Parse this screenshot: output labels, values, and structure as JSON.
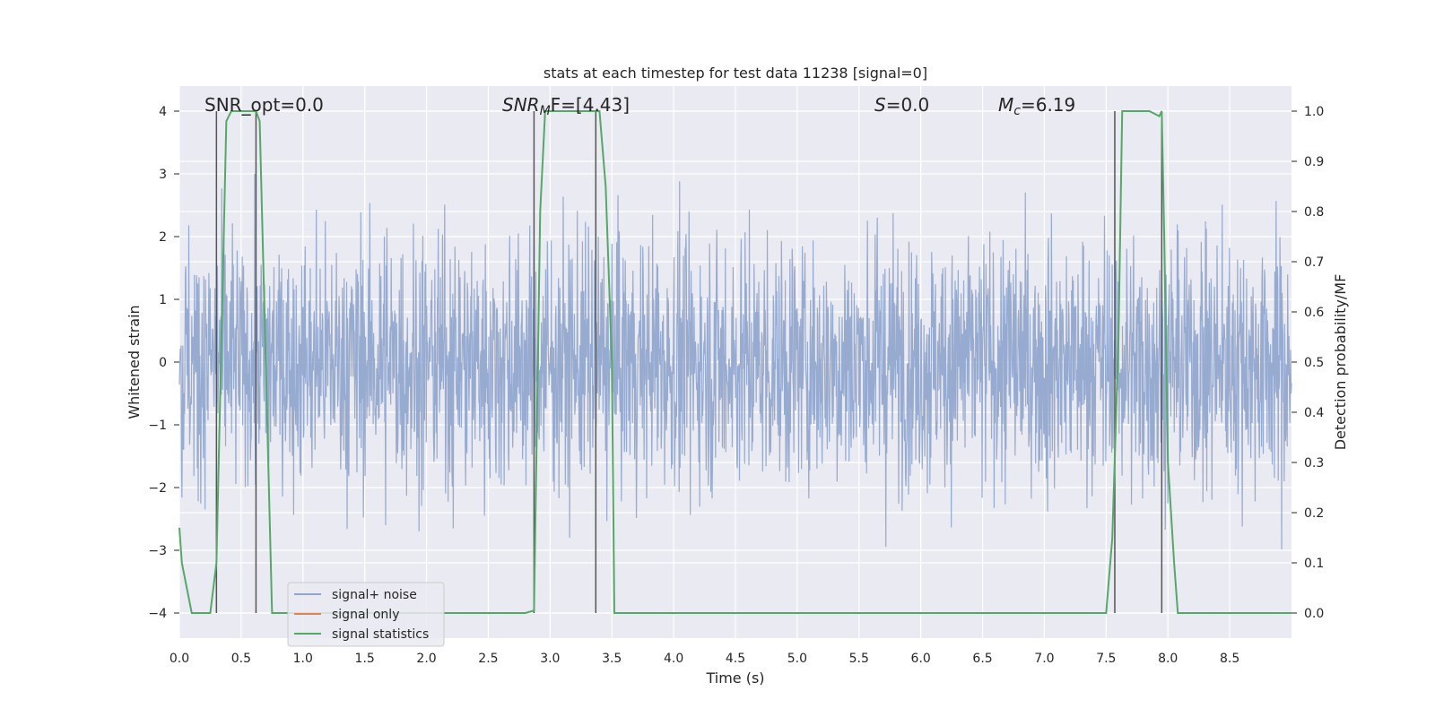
{
  "chart_data": {
    "type": "line",
    "title": "stats at each timestep for test data 11238 [signal=0]",
    "xlabel": "Time (s)",
    "ylabel": "Whitened strain",
    "y2label": "Detection probability/MF",
    "xlim": [
      0.0,
      9.0
    ],
    "ylim": [
      -4.4,
      4.4
    ],
    "y2lim": [
      -0.05,
      1.05
    ],
    "xticks": [
      "0.0",
      "0.5",
      "1.0",
      "1.5",
      "2.0",
      "2.5",
      "3.0",
      "3.5",
      "4.0",
      "4.5",
      "5.0",
      "5.5",
      "6.0",
      "6.5",
      "7.0",
      "7.5",
      "8.0",
      "8.5"
    ],
    "yticks": [
      "4",
      "3",
      "2",
      "1",
      "0",
      "−1",
      "−2",
      "−3",
      "−4"
    ],
    "y2ticks": [
      "1.0",
      "0.9",
      "0.8",
      "0.7",
      "0.6",
      "0.5",
      "0.4",
      "0.3",
      "0.2",
      "0.1",
      "0.0"
    ],
    "grid": true,
    "legend_position": "lower-left",
    "annotations": [
      {
        "id": "snr-opt",
        "text": "SNR_opt=0.0",
        "x": 0.2
      },
      {
        "id": "snr-mf",
        "text": "SNR_MF=[4.43]",
        "x": 2.6
      },
      {
        "id": "s",
        "text": "S=0.0",
        "x": 5.6
      },
      {
        "id": "mc",
        "text": "M_c=6.19",
        "x": 6.6
      }
    ],
    "annotation_labels": {
      "snr_opt": "SNR_opt=0.0",
      "snr_mf_main": "SNR",
      "snr_mf_sub": "M",
      "snr_mf_rest": "F=[4.43]",
      "s_main": "S",
      "s_rest": "=0.0",
      "mc_main": "M",
      "mc_sub": "c",
      "mc_rest": "=6.19"
    },
    "vertical_markers": [
      0.3,
      0.62,
      2.87,
      3.37,
      7.57,
      7.95
    ],
    "series": [
      {
        "name": "signal+ noise",
        "color": "#92a6cd",
        "kind": "noise",
        "amplitude_sd": 1.0,
        "xrange": [
          0.0,
          9.0
        ]
      },
      {
        "name": "signal only",
        "color": "#dd8452",
        "values": []
      },
      {
        "name": "signal statistics",
        "color": "#55a868",
        "axis": "y2",
        "x": [
          0.0,
          0.02,
          0.06,
          0.1,
          0.25,
          0.3,
          0.38,
          0.42,
          0.5,
          0.6,
          0.62,
          0.65,
          0.75,
          1.0,
          2.0,
          2.8,
          2.87,
          2.92,
          2.96,
          3.0,
          3.2,
          3.4,
          3.45,
          3.5,
          3.52,
          4.0,
          5.0,
          6.0,
          7.0,
          7.5,
          7.55,
          7.6,
          7.63,
          7.7,
          7.85,
          7.93,
          7.95,
          7.97,
          8.0,
          8.05,
          8.08,
          8.5,
          9.0
        ],
        "y": [
          0.17,
          0.1,
          0.05,
          0.0,
          0.0,
          0.1,
          0.98,
          1.0,
          1.0,
          1.0,
          1.0,
          0.98,
          0.0,
          0.0,
          0.0,
          0.0,
          0.005,
          0.8,
          1.0,
          1.0,
          1.0,
          1.0,
          0.85,
          0.5,
          0.0,
          0.0,
          0.0,
          0.0,
          0.0,
          0.0,
          0.15,
          0.55,
          1.0,
          1.0,
          1.0,
          0.99,
          1.0,
          0.75,
          0.3,
          0.1,
          0.0,
          0.0,
          0.0
        ]
      }
    ]
  }
}
